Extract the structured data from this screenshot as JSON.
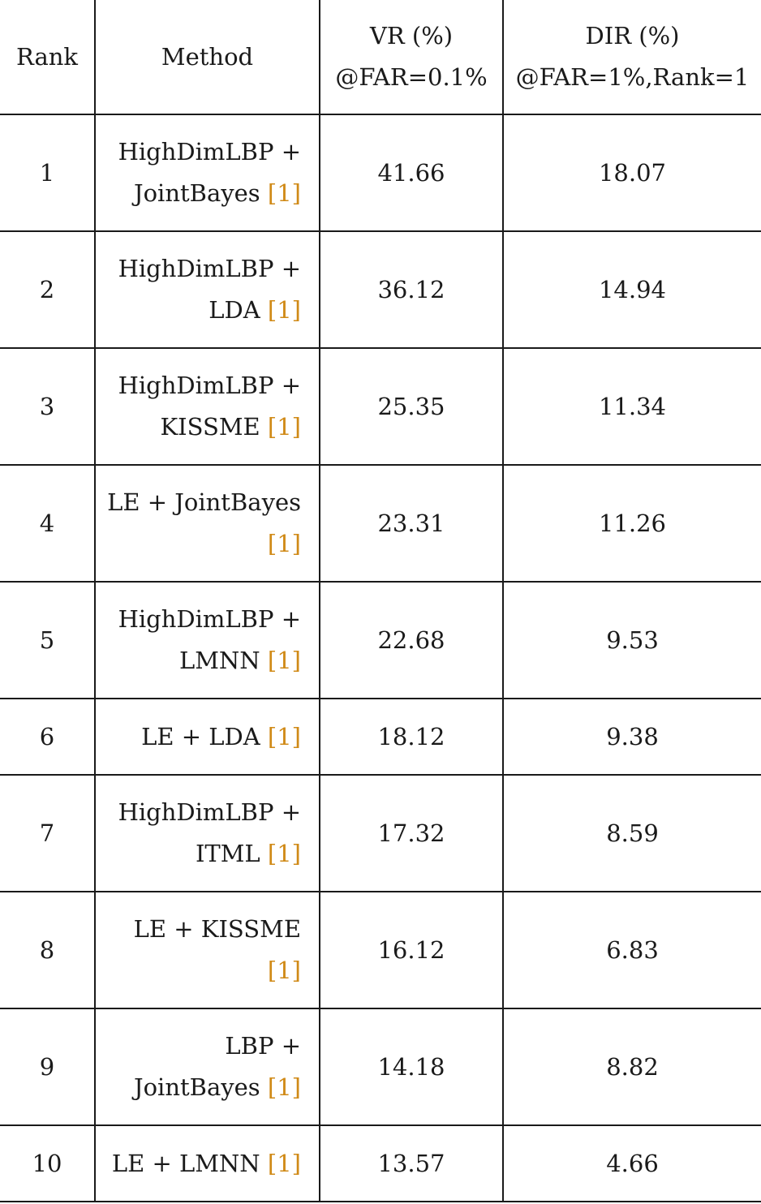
{
  "headers": {
    "rank": "Rank",
    "method": "Method",
    "vr_line1": "VR (%)",
    "vr_line2": "@FAR=0.1%",
    "dir_line1": "DIR (%)",
    "dir_line2": "@FAR=1%,Rank=1"
  },
  "citation": "[1]",
  "rows": [
    {
      "rank": "1",
      "method_line1": "HighDimLBP +",
      "method_line2": "JointBayes",
      "vr": "41.66",
      "dir": "18.07"
    },
    {
      "rank": "2",
      "method_line1": "HighDimLBP +",
      "method_line2": "LDA",
      "vr": "36.12",
      "dir": "14.94"
    },
    {
      "rank": "3",
      "method_line1": "HighDimLBP +",
      "method_line2": "KISSME",
      "vr": "25.35",
      "dir": "11.34"
    },
    {
      "rank": "4",
      "method_line1": "LE + JointBayes",
      "method_line2": "",
      "vr": "23.31",
      "dir": "11.26"
    },
    {
      "rank": "5",
      "method_line1": "HighDimLBP +",
      "method_line2": "LMNN",
      "vr": "22.68",
      "dir": "9.53"
    },
    {
      "rank": "6",
      "method_line1": "LE + LDA",
      "method_line2": "",
      "vr": "18.12",
      "dir": "9.38"
    },
    {
      "rank": "7",
      "method_line1": "HighDimLBP +",
      "method_line2": "ITML",
      "vr": "17.32",
      "dir": "8.59"
    },
    {
      "rank": "8",
      "method_line1": "LE + KISSME",
      "method_line2": "",
      "vr": "16.12",
      "dir": "6.83"
    },
    {
      "rank": "9",
      "method_line1": "LBP +",
      "method_line2": "JointBayes",
      "vr": "14.18",
      "dir": "8.82"
    },
    {
      "rank": "10",
      "method_line1": "LE + LMNN",
      "method_line2": "",
      "vr": "13.57",
      "dir": "4.66"
    }
  ]
}
